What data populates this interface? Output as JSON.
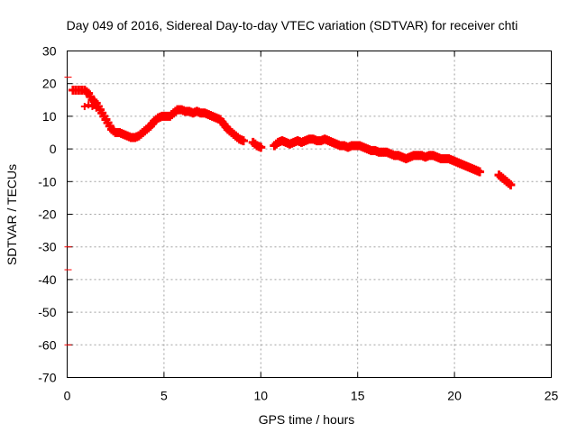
{
  "chart_data": {
    "type": "scatter",
    "title": "Day 049 of 2016, Sidereal Day-to-day VTEC variation (SDTVAR) for receiver chti",
    "xlabel": "GPS time / hours",
    "ylabel": "SDTVAR / TECUs",
    "xlim": [
      0,
      25
    ],
    "ylim": [
      -70,
      30
    ],
    "xticks": [
      0,
      5,
      10,
      15,
      20,
      25
    ],
    "yticks": [
      -70,
      -60,
      -50,
      -40,
      -30,
      -20,
      -10,
      0,
      10,
      20,
      30
    ],
    "grid": true,
    "legend": "none",
    "series_color": "#ff0000",
    "marker": "plus",
    "series": [
      {
        "name": "SDTVAR",
        "x": [
          0.3,
          0.6,
          0.9,
          1.1,
          1.3,
          1.5,
          1.7,
          1.9,
          2.1,
          2.3,
          2.5,
          2.7,
          2.9,
          3.1,
          3.3,
          3.5,
          3.7,
          3.9,
          4.1,
          4.3,
          4.5,
          4.7,
          4.9,
          5.1,
          5.3,
          5.5,
          5.7,
          5.9,
          6.1,
          6.3,
          6.5,
          6.7,
          6.9,
          7.1,
          7.3,
          7.5,
          7.7,
          7.9,
          8.1,
          8.3,
          8.5,
          8.7,
          8.9,
          9.1,
          9.6,
          9.8,
          10.0,
          10.7,
          10.9,
          11.1,
          11.3,
          11.5,
          11.7,
          11.9,
          12.1,
          12.3,
          12.5,
          12.7,
          12.9,
          13.1,
          13.3,
          13.5,
          13.7,
          13.9,
          14.1,
          14.3,
          14.5,
          14.7,
          14.9,
          15.1,
          15.3,
          15.5,
          15.7,
          15.9,
          16.1,
          16.3,
          16.5,
          16.7,
          16.9,
          17.1,
          17.3,
          17.5,
          17.7,
          17.9,
          18.1,
          18.3,
          18.5,
          18.7,
          18.9,
          19.1,
          19.3,
          19.5,
          19.7,
          19.9,
          20.1,
          20.3,
          20.5,
          20.7,
          20.9,
          21.1,
          21.3,
          22.3,
          22.5,
          22.7,
          22.9
        ],
        "y": [
          18,
          18,
          18,
          17,
          15,
          14,
          12,
          10,
          8,
          6,
          5,
          5,
          4.5,
          4,
          3.5,
          3.5,
          4,
          5,
          6,
          7,
          8.5,
          9.5,
          10,
          10,
          10,
          11,
          12,
          12,
          11.5,
          11.5,
          11,
          11.5,
          11,
          11,
          10.5,
          10,
          9.5,
          9,
          7.5,
          6,
          5,
          4,
          3,
          2.5,
          2,
          1,
          0.5,
          1,
          2,
          2.5,
          2,
          1.5,
          2,
          2.5,
          2,
          2.5,
          3,
          3,
          2.5,
          2.5,
          3,
          2.5,
          2,
          1.5,
          1,
          1,
          0.5,
          1,
          1,
          1,
          0.5,
          0,
          -0.5,
          -0.5,
          -1,
          -1,
          -1,
          -1.5,
          -2,
          -2,
          -2.5,
          -3,
          -2.5,
          -2,
          -2,
          -2,
          -2.5,
          -2,
          -2,
          -2.5,
          -3,
          -3,
          -3,
          -3.5,
          -4,
          -4.5,
          -5,
          -5.5,
          -6,
          -6.5,
          -7,
          -8,
          -9,
          -10,
          -11
        ]
      }
    ],
    "outliers": {
      "x": [
        0.0,
        0.0,
        0.0,
        0.0
      ],
      "y": [
        22,
        -30,
        -37,
        -60
      ]
    },
    "extra_segments": {
      "x": [
        0.9,
        1.1,
        1.3,
        1.5
      ],
      "y": [
        13,
        13.5,
        13,
        12.5
      ]
    }
  }
}
